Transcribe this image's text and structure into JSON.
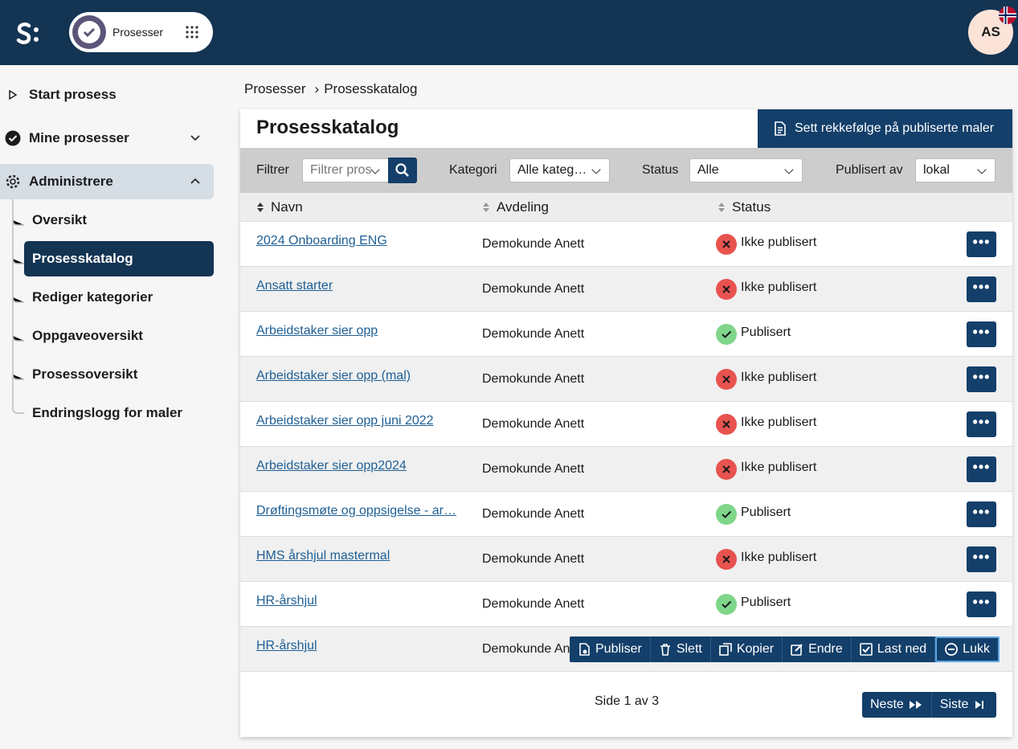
{
  "header": {
    "app": "Prosesser",
    "avatar": "AS"
  },
  "sidebar": {
    "items": [
      "Start prosess",
      "Mine prosesser",
      "Administrere"
    ],
    "subitems": [
      "Oversikt",
      "Prosesskatalog",
      "Rediger kategorier",
      "Oppgaveoversikt",
      "Prosessoversikt",
      "Endringslogg for maler"
    ]
  },
  "breadcrumb": [
    "Prosesser",
    "Prosesskatalog"
  ],
  "card": {
    "title": "Prosesskatalog",
    "order_button": "Sett rekkefølge på publiserte maler"
  },
  "filters": {
    "label": "Filtrer",
    "placeholder": "Filtrer pros",
    "category_label": "Kategori",
    "category": "Alle kateg…",
    "status_label": "Status",
    "status": "Alle",
    "publisher_label": "Publisert av",
    "publisher": "lokal"
  },
  "table": {
    "headers": [
      "Navn",
      "Avdeling",
      "Status"
    ],
    "rows": [
      {
        "name": "2024 Onboarding ENG",
        "department": "Demokunde Anett",
        "status": "Ikke publisert",
        "status_color": "#e8534f"
      },
      {
        "name": "Ansatt starter",
        "department": "Demokunde Anett",
        "status": "Ikke publisert",
        "status_color": "#e8534f"
      },
      {
        "name": "Arbeidstaker sier opp",
        "department": "Demokunde Anett",
        "status": "Publisert",
        "status_color": "#7fd68a"
      },
      {
        "name": "Arbeidstaker sier opp (mal)",
        "department": "Demokunde Anett",
        "status": "Ikke publisert",
        "status_color": "#e8534f"
      },
      {
        "name": "Arbeidstaker sier opp juni 2022",
        "department": "Demokunde Anett",
        "status": "Ikke publisert",
        "status_color": "#e8534f"
      },
      {
        "name": "Arbeidstaker sier opp2024",
        "department": "Demokunde Anett",
        "status": "Ikke publisert",
        "status_color": "#e8534f"
      },
      {
        "name": "Drøftingsmøte og oppsigelse - ar…",
        "department": "Demokunde Anett",
        "status": "Publisert",
        "status_color": "#7fd68a"
      },
      {
        "name": "HMS årshjul mastermal",
        "department": "Demokunde Anett",
        "status": "Ikke publisert",
        "status_color": "#e8534f"
      },
      {
        "name": "HR-årshjul",
        "department": "Demokunde Anett",
        "status": "Publisert",
        "status_color": "#7fd68a"
      },
      {
        "name": "HR-årshjul",
        "department": "Demokunde Anett"
      }
    ]
  },
  "row_actions": [
    "Publiser",
    "Slett",
    "Kopier",
    "Endre",
    "Last ned",
    "Lukk"
  ],
  "pagination": {
    "info": "Side 1 av 3",
    "next": "Neste",
    "last": "Siste"
  }
}
